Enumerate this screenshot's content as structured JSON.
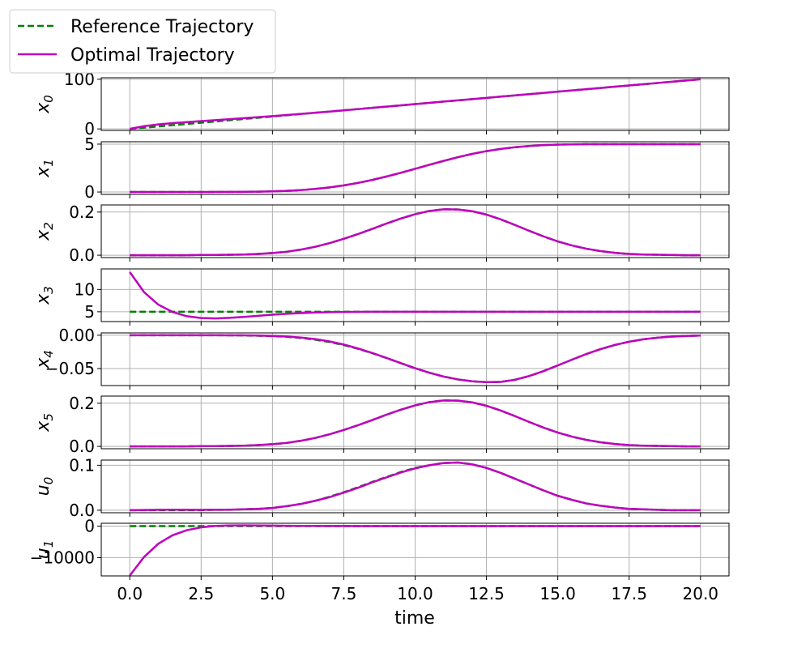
{
  "legend": {
    "placement": "upper-left-outside",
    "entries": [
      {
        "label": "Reference Trajectory",
        "color": "#008000",
        "style": "dashed"
      },
      {
        "label": "Optimal Trajectory",
        "color": "#bf00bf",
        "style": "solid"
      }
    ]
  },
  "chart_data": {
    "type": "line",
    "xlabel": "time",
    "xlim": [
      -1,
      21
    ],
    "xticks": [
      0,
      2.5,
      5,
      7.5,
      10,
      12.5,
      15,
      17.5,
      20
    ],
    "xtick_labels": [
      "0.0",
      "2.5",
      "5.0",
      "7.5",
      "10.0",
      "12.5",
      "15.0",
      "17.5",
      "20.0"
    ],
    "grid": true,
    "x": [
      0,
      0.5,
      1,
      1.5,
      2,
      2.5,
      3,
      3.5,
      4,
      4.5,
      5,
      5.5,
      6,
      6.5,
      7,
      7.5,
      8,
      8.5,
      9,
      9.5,
      10,
      10.5,
      11,
      11.5,
      12,
      12.5,
      13,
      13.5,
      14,
      14.5,
      15,
      15.5,
      16,
      16.5,
      17,
      17.5,
      18,
      18.5,
      19,
      19.5,
      20
    ],
    "panels": [
      {
        "ylabel_base": "x",
        "ylabel_sub": "0",
        "ylim": [
          -3,
          103
        ],
        "yticks": [
          0,
          100
        ],
        "ytick_labels": [
          "0",
          "100"
        ],
        "series": [
          {
            "name": "Reference Trajectory",
            "values": [
              0,
              2.5,
              5,
              7.5,
              10,
              12.5,
              15,
              17.5,
              20,
              22.5,
              25,
              27.5,
              30,
              32.5,
              35,
              37.5,
              40,
              42.5,
              45,
              47.5,
              50,
              52.5,
              55,
              57.5,
              60,
              62.5,
              65,
              67.5,
              70,
              72.5,
              75,
              77.5,
              80,
              82.5,
              85,
              87.5,
              90,
              92.5,
              95,
              97.5,
              100
            ]
          },
          {
            "name": "Optimal Trajectory",
            "values": [
              0,
              5.5,
              9,
              11.7,
              13.8,
              15.7,
              17.6,
              19.6,
              21.6,
              23.7,
              25.8,
              28,
              30.3,
              32.6,
              35,
              37.4,
              39.9,
              42.4,
              44.9,
              47.4,
              50,
              52.5,
              55,
              57.5,
              60,
              62.5,
              65,
              67.5,
              70,
              72.5,
              75,
              77.5,
              80,
              82.5,
              85,
              87.5,
              90,
              92.5,
              95,
              97.5,
              100
            ]
          }
        ]
      },
      {
        "ylabel_base": "x",
        "ylabel_sub": "1",
        "ylim": [
          -0.25,
          5.25
        ],
        "yticks": [
          0,
          5
        ],
        "ytick_labels": [
          "0",
          "5"
        ],
        "series": [
          {
            "name": "Reference Trajectory",
            "values": [
              0,
              0,
              0,
              0,
              0,
              0,
              0.01,
              0.01,
              0.02,
              0.04,
              0.07,
              0.12,
              0.2,
              0.32,
              0.48,
              0.69,
              0.95,
              1.26,
              1.62,
              2.01,
              2.42,
              2.84,
              3.25,
              3.64,
              3.98,
              4.27,
              4.5,
              4.68,
              4.81,
              4.9,
              4.95,
              4.98,
              5,
              5,
              5,
              5,
              5,
              5,
              5,
              5,
              5
            ]
          },
          {
            "name": "Optimal Trajectory",
            "values": [
              0,
              0,
              0,
              0,
              0,
              0,
              0.01,
              0.01,
              0.02,
              0.04,
              0.07,
              0.12,
              0.2,
              0.32,
              0.48,
              0.69,
              0.95,
              1.26,
              1.62,
              2.01,
              2.42,
              2.84,
              3.25,
              3.64,
              3.98,
              4.27,
              4.5,
              4.68,
              4.81,
              4.9,
              4.95,
              4.98,
              5,
              5,
              5,
              5,
              5,
              5,
              5,
              5,
              5
            ]
          }
        ]
      },
      {
        "ylabel_base": "x",
        "ylabel_sub": "2",
        "ylim": [
          -0.011,
          0.233
        ],
        "yticks": [
          0,
          0.2
        ],
        "ytick_labels": [
          "0.0",
          "0.2"
        ],
        "series": [
          {
            "name": "Reference Trajectory",
            "values": [
              0,
              0,
              0,
              0,
              0,
              0.001,
              0.001,
              0.002,
              0.003,
              0.006,
              0.01,
              0.016,
              0.026,
              0.039,
              0.056,
              0.076,
              0.098,
              0.122,
              0.147,
              0.17,
              0.19,
              0.205,
              0.213,
              0.212,
              0.204,
              0.188,
              0.166,
              0.14,
              0.113,
              0.087,
              0.064,
              0.045,
              0.03,
              0.019,
              0.011,
              0.006,
              0.003,
              0.002,
              0.001,
              0,
              0
            ]
          },
          {
            "name": "Optimal Trajectory",
            "values": [
              0,
              0,
              0,
              0,
              0,
              0.001,
              0.001,
              0.002,
              0.003,
              0.006,
              0.01,
              0.016,
              0.026,
              0.039,
              0.056,
              0.076,
              0.098,
              0.122,
              0.147,
              0.17,
              0.19,
              0.205,
              0.213,
              0.212,
              0.204,
              0.188,
              0.166,
              0.14,
              0.113,
              0.087,
              0.064,
              0.045,
              0.03,
              0.019,
              0.011,
              0.006,
              0.003,
              0.002,
              0.001,
              0,
              0
            ]
          }
        ]
      },
      {
        "ylabel_base": "x",
        "ylabel_sub": "3",
        "ylim": [
          2.8,
          14.6
        ],
        "yticks": [
          5,
          10
        ],
        "ytick_labels": [
          "5",
          "10"
        ],
        "series": [
          {
            "name": "Reference Trajectory",
            "values": [
              5,
              5,
              5,
              5,
              5,
              5,
              5,
              5,
              5,
              5,
              5,
              5,
              5,
              5,
              5,
              5,
              5,
              5,
              5,
              5,
              5,
              5,
              5,
              5,
              5,
              5,
              5,
              5,
              5,
              5,
              5,
              5,
              5,
              5,
              5,
              5,
              5,
              5,
              5,
              5,
              5
            ]
          },
          {
            "name": "Optimal Trajectory",
            "values": [
              13.9,
              9.4,
              6.6,
              4.95,
              4,
              3.6,
              3.5,
              3.65,
              3.85,
              4.1,
              4.35,
              4.55,
              4.7,
              4.82,
              4.9,
              4.95,
              4.98,
              5,
              5,
              5,
              5,
              5,
              5,
              5,
              5,
              5,
              5,
              5,
              5,
              5,
              5,
              5,
              5,
              5,
              5,
              5,
              5,
              5,
              5,
              5,
              5
            ]
          }
        ]
      },
      {
        "ylabel_base": "x",
        "ylabel_sub": "4",
        "ylim": [
          -0.0755,
          0.0035
        ],
        "yticks": [
          0,
          -0.05
        ],
        "ytick_labels": [
          "0.00",
          "−0.05"
        ],
        "series": [
          {
            "name": "Reference Trajectory",
            "values": [
              0,
              0,
              0,
              0,
              0,
              0,
              0,
              -0.0001,
              -0.0003,
              -0.0007,
              -0.0013,
              -0.0024,
              -0.0041,
              -0.0067,
              -0.0102,
              -0.0148,
              -0.0204,
              -0.027,
              -0.0343,
              -0.042,
              -0.0495,
              -0.0563,
              -0.062,
              -0.0663,
              -0.0691,
              -0.0704,
              -0.07,
              -0.0668,
              -0.0612,
              -0.0538,
              -0.0453,
              -0.0366,
              -0.0282,
              -0.0208,
              -0.0146,
              -0.0097,
              -0.0061,
              -0.0036,
              -0.002,
              -0.001,
              -0.0005
            ]
          },
          {
            "name": "Optimal Trajectory",
            "values": [
              0,
              0,
              0,
              0,
              0,
              0,
              0,
              -0.0001,
              -0.0002,
              -0.0005,
              -0.001,
              -0.002,
              -0.0035,
              -0.0058,
              -0.0093,
              -0.014,
              -0.0199,
              -0.0267,
              -0.0341,
              -0.0419,
              -0.0495,
              -0.0563,
              -0.062,
              -0.0663,
              -0.0691,
              -0.0704,
              -0.07,
              -0.0668,
              -0.0612,
              -0.0538,
              -0.0453,
              -0.0366,
              -0.0282,
              -0.0208,
              -0.0146,
              -0.0097,
              -0.0061,
              -0.0036,
              -0.002,
              -0.001,
              -0.0005
            ]
          }
        ]
      },
      {
        "ylabel_base": "x",
        "ylabel_sub": "5",
        "ylim": [
          -0.011,
          0.233
        ],
        "yticks": [
          0,
          0.2
        ],
        "ytick_labels": [
          "0.0",
          "0.2"
        ],
        "series": [
          {
            "name": "Reference Trajectory",
            "values": [
              0,
              0,
              0,
              0,
              0,
              0.001,
              0.001,
              0.002,
              0.003,
              0.006,
              0.01,
              0.016,
              0.026,
              0.039,
              0.056,
              0.076,
              0.098,
              0.122,
              0.147,
              0.17,
              0.19,
              0.205,
              0.213,
              0.212,
              0.204,
              0.188,
              0.166,
              0.14,
              0.113,
              0.087,
              0.064,
              0.045,
              0.03,
              0.019,
              0.011,
              0.006,
              0.003,
              0.002,
              0.001,
              0,
              0
            ]
          },
          {
            "name": "Optimal Trajectory",
            "values": [
              0,
              0,
              0,
              0,
              0,
              0.001,
              0.001,
              0.002,
              0.003,
              0.006,
              0.01,
              0.016,
              0.026,
              0.039,
              0.056,
              0.076,
              0.098,
              0.122,
              0.147,
              0.17,
              0.19,
              0.205,
              0.213,
              0.212,
              0.204,
              0.188,
              0.166,
              0.14,
              0.113,
              0.087,
              0.064,
              0.045,
              0.03,
              0.019,
              0.011,
              0.006,
              0.003,
              0.002,
              0.001,
              0,
              0
            ]
          }
        ]
      },
      {
        "ylabel_base": "u",
        "ylabel_sub": "0",
        "ylim": [
          -0.0056,
          0.1115
        ],
        "yticks": [
          0,
          0.1
        ],
        "ytick_labels": [
          "0.0",
          "0.1"
        ],
        "series": [
          {
            "name": "Reference Trajectory",
            "values": [
              0,
              0,
              0,
              0,
              0,
              0,
              0.001,
              0.001,
              0.002,
              0.003,
              0.005,
              0.009,
              0.014,
              0.021,
              0.03,
              0.04,
              0.051,
              0.063,
              0.074,
              0.085,
              0.094,
              0.1,
              0.105,
              0.106,
              0.102,
              0.094,
              0.083,
              0.07,
              0.057,
              0.044,
              0.032,
              0.023,
              0.015,
              0.01,
              0.006,
              0.003,
              0.002,
              0.001,
              0,
              0,
              0
            ]
          },
          {
            "name": "Optimal Trajectory",
            "values": [
              0,
              0.0005,
              0.001,
              0.0012,
              0.001,
              0.0008,
              0.0009,
              0.0012,
              0.002,
              0.003,
              0.005,
              0.009,
              0.014,
              0.021,
              0.029,
              0.039,
              0.05,
              0.062,
              0.073,
              0.084,
              0.093,
              0.1,
              0.105,
              0.106,
              0.102,
              0.094,
              0.083,
              0.07,
              0.057,
              0.044,
              0.032,
              0.023,
              0.015,
              0.01,
              0.006,
              0.003,
              0.002,
              0.001,
              0,
              0,
              0
            ]
          }
        ]
      },
      {
        "ylabel_base": "u",
        "ylabel_sub": "1",
        "ylim": [
          -15800,
          900
        ],
        "yticks": [
          0,
          -10000
        ],
        "ytick_labels": [
          "0",
          "−10000"
        ],
        "series": [
          {
            "name": "Reference Trajectory",
            "values": [
              0,
              0,
              0,
              0,
              0,
              0,
              0,
              0,
              0,
              0,
              0,
              0,
              0,
              0,
              0,
              0,
              0,
              0,
              0,
              0,
              0,
              0,
              0,
              0,
              0,
              0,
              0,
              0,
              0,
              0,
              0,
              0,
              0,
              0,
              0,
              0,
              0,
              0,
              0,
              0,
              0
            ]
          },
          {
            "name": "Optimal Trajectory",
            "values": [
              -15700,
              -9800,
              -5600,
              -2900,
              -1300,
              -400,
              50,
              200,
              220,
              190,
              150,
              110,
              80,
              55,
              35,
              20,
              10,
              5,
              0,
              0,
              0,
              0,
              0,
              0,
              0,
              0,
              0,
              0,
              0,
              0,
              0,
              0,
              0,
              0,
              0,
              0,
              0,
              0,
              0,
              0,
              0
            ]
          }
        ]
      }
    ]
  }
}
